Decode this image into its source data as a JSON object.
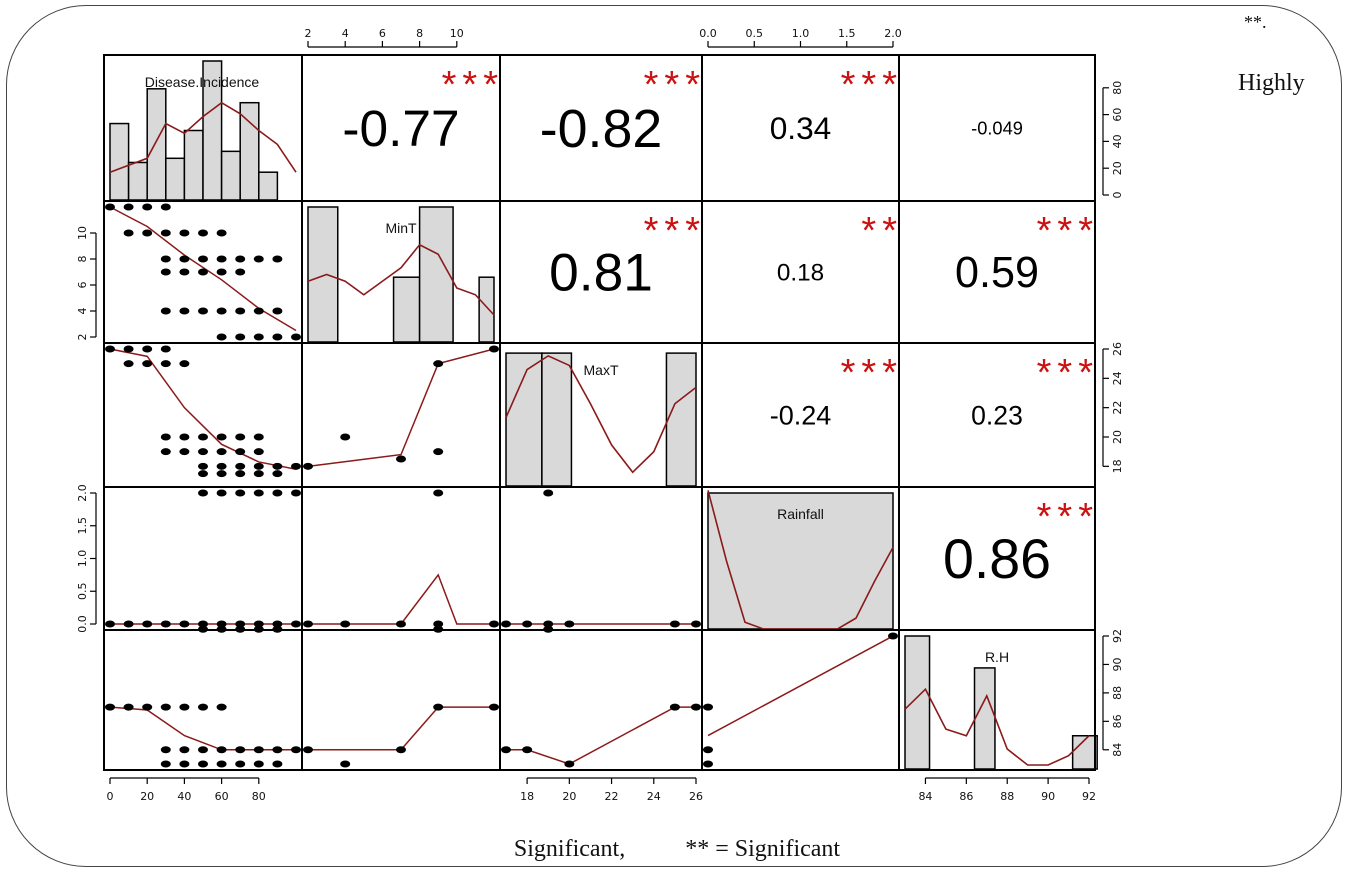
{
  "chart_data": {
    "type": "scatter",
    "title": "",
    "variables": [
      "Disease.Incidence",
      "MinT",
      "MaxT",
      "Rainfall",
      "R.H"
    ],
    "ranges": {
      "Disease.Incidence": [
        0,
        100
      ],
      "MinT": [
        2,
        12
      ],
      "MaxT": [
        17,
        26
      ],
      "Rainfall": [
        0,
        2
      ],
      "R.H": [
        83,
        92
      ]
    },
    "ticks": {
      "Disease.Incidence": {
        "values": [
          0,
          20,
          40,
          60,
          80
        ],
        "labels": [
          "0",
          "20",
          "40",
          "60",
          "80"
        ]
      },
      "MinT": {
        "values": [
          2,
          4,
          6,
          8,
          10
        ],
        "labels": [
          "2",
          "4",
          "6",
          "8",
          "10"
        ]
      },
      "MaxT": {
        "values": [
          18,
          20,
          22,
          24,
          26
        ],
        "labels": [
          "18",
          "20",
          "22",
          "24",
          "26"
        ]
      },
      "Rainfall": {
        "values": [
          0,
          0.5,
          1,
          1.5,
          2
        ],
        "labels": [
          "0.0",
          "0.5",
          "1.0",
          "1.5",
          "2.0"
        ]
      },
      "R.H": {
        "values": [
          84,
          86,
          88,
          90,
          92
        ],
        "labels": [
          "84",
          "86",
          "88",
          "90",
          "92"
        ]
      }
    },
    "correlations": [
      {
        "row": 0,
        "col": 1,
        "value": "-0.77",
        "stars": "***"
      },
      {
        "row": 0,
        "col": 2,
        "value": "-0.82",
        "stars": "***"
      },
      {
        "row": 0,
        "col": 3,
        "value": "0.34",
        "stars": "***"
      },
      {
        "row": 0,
        "col": 4,
        "value": "-0.049",
        "stars": ""
      },
      {
        "row": 1,
        "col": 2,
        "value": "0.81",
        "stars": "***"
      },
      {
        "row": 1,
        "col": 3,
        "value": "0.18",
        "stars": "**"
      },
      {
        "row": 1,
        "col": 4,
        "value": "0.59",
        "stars": "***"
      },
      {
        "row": 2,
        "col": 3,
        "value": "-0.24",
        "stars": "***"
      },
      {
        "row": 2,
        "col": 4,
        "value": "0.23",
        "stars": "***"
      },
      {
        "row": 3,
        "col": 4,
        "value": "0.86",
        "stars": "***"
      }
    ],
    "histograms": {
      "Disease.Incidence": {
        "edges": [
          0,
          10,
          20,
          30,
          40,
          50,
          60,
          70,
          80,
          90,
          100
        ],
        "heights": [
          0.55,
          0.27,
          0.8,
          0.3,
          0.5,
          1.0,
          0.35,
          0.7,
          0.2,
          0
        ]
      },
      "MinT": {
        "edges": [
          2,
          3.6,
          5.2,
          6.6,
          8,
          9.8,
          11.2,
          12
        ],
        "heights": [
          1.0,
          0,
          0,
          0.48,
          1.0,
          0,
          0.48
        ]
      },
      "MaxT": {
        "edges": [
          17,
          18.7,
          20.1,
          24.6,
          26
        ],
        "heights": [
          0.97,
          0.97,
          0,
          0.97
        ]
      },
      "Rainfall": {
        "edges": [
          0,
          2
        ],
        "heights": [
          1.0
        ]
      },
      "R.H": {
        "edges": [
          83,
          84.2,
          86.4,
          87.4,
          91.2,
          92.4
        ],
        "heights": [
          1.0,
          0,
          0.76,
          0,
          0.25
        ]
      }
    },
    "densities": {
      "Disease.Incidence": [
        [
          0,
          0.2
        ],
        [
          10,
          0.25
        ],
        [
          20,
          0.3
        ],
        [
          30,
          0.55
        ],
        [
          40,
          0.48
        ],
        [
          50,
          0.6
        ],
        [
          60,
          0.7
        ],
        [
          70,
          0.62
        ],
        [
          80,
          0.5
        ],
        [
          90,
          0.4
        ],
        [
          100,
          0.2
        ]
      ],
      "MinT": [
        [
          2,
          0.45
        ],
        [
          3,
          0.5
        ],
        [
          4,
          0.45
        ],
        [
          5,
          0.35
        ],
        [
          6,
          0.45
        ],
        [
          7,
          0.55
        ],
        [
          8,
          0.72
        ],
        [
          9,
          0.65
        ],
        [
          10,
          0.4
        ],
        [
          11,
          0.35
        ],
        [
          12,
          0.2
        ]
      ],
      "MaxT": [
        [
          17,
          0.5
        ],
        [
          18,
          0.85
        ],
        [
          19,
          0.95
        ],
        [
          20,
          0.88
        ],
        [
          21,
          0.6
        ],
        [
          22,
          0.3
        ],
        [
          23,
          0.1
        ],
        [
          24,
          0.25
        ],
        [
          25,
          0.6
        ],
        [
          26,
          0.72
        ]
      ],
      "Rainfall": [
        [
          0,
          1.02
        ],
        [
          0.2,
          0.5
        ],
        [
          0.4,
          0.05
        ],
        [
          0.6,
          0
        ],
        [
          1.0,
          0
        ],
        [
          1.4,
          0
        ],
        [
          1.6,
          0.08
        ],
        [
          1.8,
          0.35
        ],
        [
          2.0,
          0.6
        ]
      ],
      "R.H": [
        [
          83,
          0.45
        ],
        [
          84,
          0.6
        ],
        [
          85,
          0.3
        ],
        [
          86,
          0.25
        ],
        [
          87,
          0.55
        ],
        [
          88,
          0.15
        ],
        [
          89,
          0.03
        ],
        [
          90,
          0.03
        ],
        [
          91,
          0.1
        ],
        [
          92,
          0.25
        ]
      ]
    },
    "scatter": [
      {
        "row": 1,
        "col": 0,
        "points": [
          [
            0,
            12
          ],
          [
            10,
            12
          ],
          [
            20,
            12
          ],
          [
            30,
            12
          ],
          [
            10,
            10
          ],
          [
            20,
            10
          ],
          [
            30,
            10
          ],
          [
            40,
            10
          ],
          [
            50,
            10
          ],
          [
            60,
            10
          ],
          [
            30,
            8
          ],
          [
            40,
            8
          ],
          [
            50,
            8
          ],
          [
            60,
            8
          ],
          [
            70,
            8
          ],
          [
            80,
            8
          ],
          [
            90,
            8
          ],
          [
            30,
            7
          ],
          [
            40,
            7
          ],
          [
            50,
            7
          ],
          [
            60,
            7
          ],
          [
            70,
            7
          ],
          [
            30,
            4
          ],
          [
            40,
            4
          ],
          [
            50,
            4
          ],
          [
            60,
            4
          ],
          [
            70,
            4
          ],
          [
            80,
            4
          ],
          [
            90,
            4
          ],
          [
            60,
            2
          ],
          [
            70,
            2
          ],
          [
            80,
            2
          ],
          [
            90,
            2
          ],
          [
            100,
            2
          ]
        ],
        "fit": [
          [
            0,
            12
          ],
          [
            20,
            10.5
          ],
          [
            40,
            8.3
          ],
          [
            60,
            6.4
          ],
          [
            80,
            4.2
          ],
          [
            100,
            2.5
          ]
        ]
      },
      {
        "row": 2,
        "col": 0,
        "points": [
          [
            0,
            26
          ],
          [
            10,
            26
          ],
          [
            20,
            26
          ],
          [
            30,
            26
          ],
          [
            10,
            25
          ],
          [
            20,
            25
          ],
          [
            30,
            25
          ],
          [
            40,
            25
          ],
          [
            30,
            20
          ],
          [
            40,
            20
          ],
          [
            50,
            20
          ],
          [
            60,
            20
          ],
          [
            70,
            20
          ],
          [
            80,
            20
          ],
          [
            30,
            19
          ],
          [
            40,
            19
          ],
          [
            50,
            19
          ],
          [
            60,
            19
          ],
          [
            70,
            19
          ],
          [
            80,
            19
          ],
          [
            50,
            18
          ],
          [
            60,
            18
          ],
          [
            70,
            18
          ],
          [
            80,
            18
          ],
          [
            90,
            18
          ],
          [
            100,
            18
          ],
          [
            50,
            17.5
          ],
          [
            60,
            17.5
          ],
          [
            70,
            17.5
          ],
          [
            80,
            17.5
          ],
          [
            90,
            17.5
          ]
        ],
        "fit": [
          [
            0,
            26
          ],
          [
            20,
            25.5
          ],
          [
            40,
            22
          ],
          [
            60,
            19.5
          ],
          [
            80,
            18.3
          ],
          [
            100,
            17.8
          ]
        ]
      },
      {
        "row": 2,
        "col": 1,
        "points": [
          [
            2,
            18
          ],
          [
            4,
            20
          ],
          [
            7,
            18.5
          ],
          [
            9,
            19
          ],
          [
            9,
            25
          ],
          [
            12,
            26
          ]
        ],
        "fit": [
          [
            2,
            18
          ],
          [
            7,
            18.8
          ],
          [
            9,
            25
          ],
          [
            12,
            26
          ]
        ]
      },
      {
        "row": 3,
        "col": 0,
        "points": [
          [
            0,
            0
          ],
          [
            10,
            0
          ],
          [
            20,
            0
          ],
          [
            30,
            0
          ],
          [
            40,
            0
          ],
          [
            50,
            0
          ],
          [
            60,
            0
          ],
          [
            70,
            0
          ],
          [
            80,
            0
          ],
          [
            90,
            0
          ],
          [
            100,
            0
          ],
          [
            50,
            -0.08
          ],
          [
            60,
            -0.08
          ],
          [
            70,
            -0.08
          ],
          [
            80,
            -0.08
          ],
          [
            90,
            -0.08
          ],
          [
            60,
            2
          ],
          [
            70,
            2
          ],
          [
            80,
            2
          ],
          [
            90,
            2
          ],
          [
            100,
            2
          ],
          [
            50,
            2
          ]
        ],
        "fit": [
          [
            0,
            0
          ],
          [
            100,
            0
          ]
        ]
      },
      {
        "row": 3,
        "col": 1,
        "points": [
          [
            2,
            0
          ],
          [
            4,
            0
          ],
          [
            7,
            0
          ],
          [
            9,
            0
          ],
          [
            9,
            -0.08
          ],
          [
            12,
            0
          ],
          [
            9,
            2
          ]
        ],
        "fit": [
          [
            2,
            0
          ],
          [
            7,
            0
          ],
          [
            9,
            0.75
          ],
          [
            10,
            0
          ],
          [
            12,
            0
          ]
        ]
      },
      {
        "row": 3,
        "col": 2,
        "points": [
          [
            17,
            0
          ],
          [
            18,
            0
          ],
          [
            19,
            0
          ],
          [
            20,
            0
          ],
          [
            25,
            0
          ],
          [
            26,
            0
          ],
          [
            19,
            -0.08
          ],
          [
            19,
            2
          ]
        ],
        "fit": [
          [
            17,
            0
          ],
          [
            26,
            0
          ]
        ]
      },
      {
        "row": 4,
        "col": 0,
        "points": [
          [
            0,
            87
          ],
          [
            10,
            87
          ],
          [
            20,
            87
          ],
          [
            30,
            87
          ],
          [
            40,
            87
          ],
          [
            50,
            87
          ],
          [
            60,
            87
          ],
          [
            30,
            84
          ],
          [
            40,
            84
          ],
          [
            50,
            84
          ],
          [
            60,
            84
          ],
          [
            70,
            84
          ],
          [
            80,
            84
          ],
          [
            90,
            84
          ],
          [
            100,
            84
          ],
          [
            30,
            83
          ],
          [
            40,
            83
          ],
          [
            50,
            83
          ],
          [
            60,
            83
          ],
          [
            70,
            83
          ],
          [
            80,
            83
          ],
          [
            90,
            83
          ]
        ],
        "fit": [
          [
            0,
            87
          ],
          [
            20,
            86.8
          ],
          [
            40,
            85
          ],
          [
            60,
            84
          ],
          [
            100,
            84
          ]
        ]
      },
      {
        "row": 4,
        "col": 1,
        "points": [
          [
            2,
            84
          ],
          [
            4,
            83
          ],
          [
            7,
            84
          ],
          [
            9,
            87
          ],
          [
            12,
            87
          ]
        ],
        "fit": [
          [
            2,
            84
          ],
          [
            7,
            84
          ],
          [
            9,
            87
          ],
          [
            12,
            87
          ]
        ]
      },
      {
        "row": 4,
        "col": 2,
        "points": [
          [
            17,
            84
          ],
          [
            18,
            84
          ],
          [
            20,
            83
          ],
          [
            25,
            87
          ],
          [
            26,
            87
          ]
        ],
        "fit": [
          [
            17,
            84
          ],
          [
            18,
            84
          ],
          [
            20,
            83
          ],
          [
            25,
            87
          ],
          [
            26,
            87
          ]
        ]
      },
      {
        "row": 4,
        "col": 3,
        "points": [
          [
            0,
            87
          ],
          [
            0,
            84
          ],
          [
            0,
            83
          ],
          [
            2,
            92
          ]
        ],
        "fit": [
          [
            0,
            85
          ],
          [
            2,
            92
          ]
        ]
      }
    ]
  },
  "corner_top": "**.",
  "corner_right": "Highly",
  "footer": {
    "left": "Significant,",
    "right": "** = Significant"
  },
  "colors": {
    "line": "#8b1a1a",
    "star": "#cc1111",
    "bar": "#d9d9d9",
    "point": "#000000"
  }
}
